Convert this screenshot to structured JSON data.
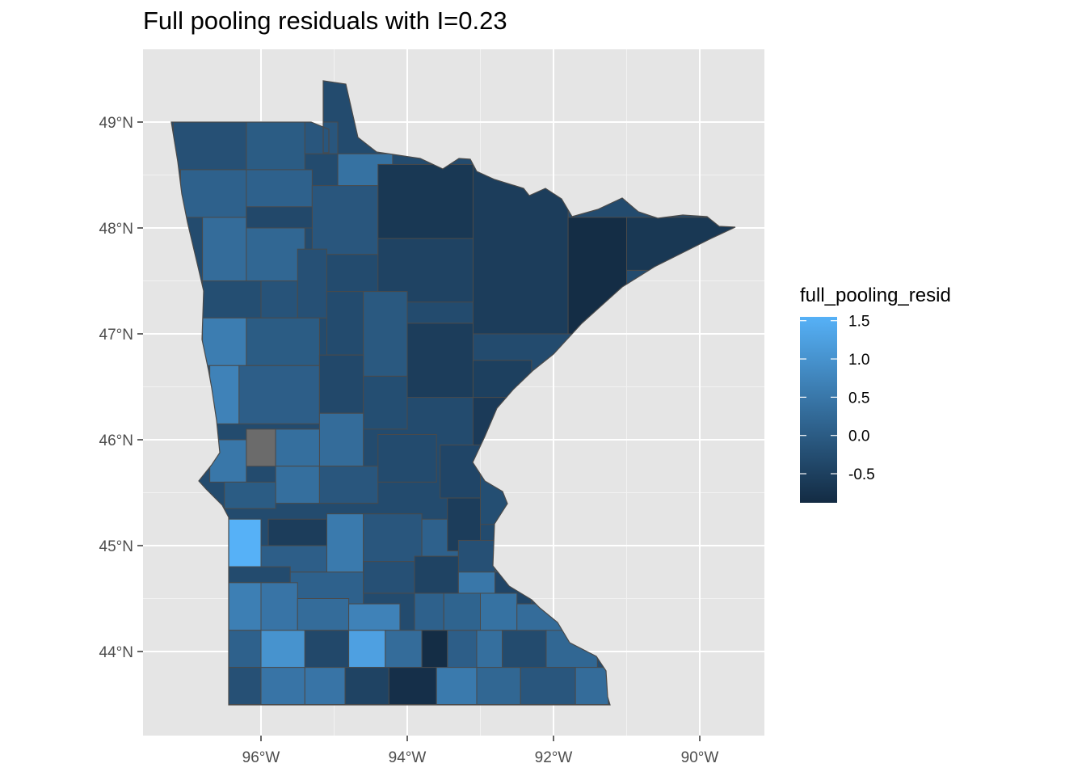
{
  "title": "Full pooling residuals with I=0.23",
  "chart_data": {
    "type": "choropleth",
    "title": "Full pooling residuals with I=0.23",
    "region": "Minnesota counties",
    "x_axis": {
      "ticks": [
        {
          "value": -96,
          "label": "96°W"
        },
        {
          "value": -94,
          "label": "94°W"
        },
        {
          "value": -92,
          "label": "92°W"
        },
        {
          "value": -90,
          "label": "90°W"
        }
      ],
      "range": [
        -97.6,
        -89.1
      ]
    },
    "y_axis": {
      "ticks": [
        {
          "value": 44,
          "label": "44°N"
        },
        {
          "value": 45,
          "label": "45°N"
        },
        {
          "value": 46,
          "label": "46°N"
        },
        {
          "value": 47,
          "label": "47°N"
        },
        {
          "value": 48,
          "label": "48°N"
        },
        {
          "value": 49,
          "label": "49°N"
        }
      ],
      "range": [
        43.2,
        49.7
      ]
    },
    "grid": true,
    "legend": {
      "title": "full_pooling_resid",
      "placement": "right",
      "breaks": [
        1.5,
        1.0,
        0.5,
        0.0,
        -0.5
      ],
      "labels": [
        "1.5",
        "1.0",
        "0.5",
        "0.0",
        "-0.5"
      ],
      "range": [
        -0.88,
        1.55
      ],
      "color_low": "#132b43",
      "color_high": "#56b1f7"
    },
    "na_color": "#6b6b6b",
    "counties": [
      {
        "lon": [
          -97.2,
          -96.2
        ],
        "lat": [
          48.55,
          49.0
        ],
        "value": -0.2
      },
      {
        "lon": [
          -96.2,
          -95.4
        ],
        "lat": [
          48.55,
          49.0
        ],
        "value": 0.0
      },
      {
        "lon": [
          -95.4,
          -94.95
        ],
        "lat": [
          48.7,
          49.0
        ],
        "value": -0.1
      },
      {
        "lon": [
          -94.95,
          -94.2
        ],
        "lat": [
          48.25,
          48.7
        ],
        "value": 0.4
      },
      {
        "lon": [
          -97.1,
          -96.2
        ],
        "lat": [
          48.1,
          48.55
        ],
        "value": 0.1
      },
      {
        "lon": [
          -96.2,
          -95.3
        ],
        "lat": [
          48.1,
          48.55
        ],
        "value": 0.1
      },
      {
        "lon": [
          -95.3,
          -94.4
        ],
        "lat": [
          47.75,
          48.4
        ],
        "value": -0.1
      },
      {
        "lon": [
          -94.4,
          -93.1
        ],
        "lat": [
          47.9,
          48.6
        ],
        "value": -0.65
      },
      {
        "lon": [
          -93.1,
          -91.8
        ],
        "lat": [
          47.0,
          48.6
        ],
        "value": -0.55
      },
      {
        "lon": [
          -91.8,
          -91.0
        ],
        "lat": [
          47.0,
          48.1
        ],
        "value": -0.85
      },
      {
        "lon": [
          -91.0,
          -89.5
        ],
        "lat": [
          47.6,
          48.1
        ],
        "value": -0.65
      },
      {
        "lon": [
          -96.8,
          -96.2
        ],
        "lat": [
          47.5,
          48.1
        ],
        "value": 0.3
      },
      {
        "lon": [
          -96.2,
          -95.3
        ],
        "lat": [
          48.0,
          48.2
        ],
        "value": -0.35
      },
      {
        "lon": [
          -96.2,
          -95.4
        ],
        "lat": [
          47.5,
          48.0
        ],
        "value": 0.2
      },
      {
        "lon": [
          -94.4,
          -93.1
        ],
        "lat": [
          47.3,
          47.9
        ],
        "value": -0.45
      },
      {
        "lon": [
          -96.8,
          -96.0
        ],
        "lat": [
          47.15,
          47.5
        ],
        "value": -0.25
      },
      {
        "lon": [
          -96.0,
          -95.5
        ],
        "lat": [
          47.15,
          47.5
        ],
        "value": -0.15
      },
      {
        "lon": [
          -95.5,
          -95.1
        ],
        "lat": [
          47.15,
          47.8
        ],
        "value": -0.2
      },
      {
        "lon": [
          -95.1,
          -94.6
        ],
        "lat": [
          46.8,
          47.4
        ],
        "value": -0.3
      },
      {
        "lon": [
          -94.6,
          -94.0
        ],
        "lat": [
          46.6,
          47.4
        ],
        "value": -0.05
      },
      {
        "lon": [
          -94.0,
          -93.1
        ],
        "lat": [
          46.4,
          47.1
        ],
        "value": -0.55
      },
      {
        "lon": [
          -96.8,
          -96.2
        ],
        "lat": [
          46.7,
          47.15
        ],
        "value": 0.6
      },
      {
        "lon": [
          -96.2,
          -95.2
        ],
        "lat": [
          46.7,
          47.15
        ],
        "value": 0.0
      },
      {
        "lon": [
          -93.1,
          -92.3
        ],
        "lat": [
          46.4,
          46.75
        ],
        "value": -0.5
      },
      {
        "lon": [
          -96.7,
          -96.3
        ],
        "lat": [
          46.15,
          46.7
        ],
        "value": 0.7
      },
      {
        "lon": [
          -96.3,
          -95.2
        ],
        "lat": [
          46.15,
          46.7
        ],
        "value": 0.05
      },
      {
        "lon": [
          -95.2,
          -94.6
        ],
        "lat": [
          46.25,
          46.8
        ],
        "value": -0.35
      },
      {
        "lon": [
          -94.6,
          -94.0
        ],
        "lat": [
          46.1,
          46.6
        ],
        "value": -0.25
      },
      {
        "lon": [
          -93.1,
          -92.3
        ],
        "lat": [
          45.85,
          46.4
        ],
        "value": -0.6
      },
      {
        "lon": [
          -95.2,
          -94.6
        ],
        "lat": [
          45.75,
          46.25
        ],
        "value": 0.3
      },
      {
        "lon": [
          -96.7,
          -96.2
        ],
        "lat": [
          45.6,
          46.0
        ],
        "value": 0.5
      },
      {
        "lon": [
          -96.2,
          -95.8
        ],
        "lat": [
          45.75,
          46.1
        ],
        "value": null
      },
      {
        "lon": [
          -95.8,
          -95.2
        ],
        "lat": [
          45.75,
          46.1
        ],
        "value": 0.35
      },
      {
        "lon": [
          -95.8,
          -95.2
        ],
        "lat": [
          45.4,
          45.75
        ],
        "value": 0.35
      },
      {
        "lon": [
          -95.2,
          -94.4
        ],
        "lat": [
          45.4,
          45.75
        ],
        "value": -0.1
      },
      {
        "lon": [
          -94.4,
          -93.6
        ],
        "lat": [
          45.6,
          46.05
        ],
        "value": -0.3
      },
      {
        "lon": [
          -93.55,
          -93.0
        ],
        "lat": [
          45.45,
          45.95
        ],
        "value": -0.4
      },
      {
        "lon": [
          -93.0,
          -92.6
        ],
        "lat": [
          45.2,
          45.85
        ],
        "value": -0.25
      },
      {
        "lon": [
          -96.5,
          -95.8
        ],
        "lat": [
          45.35,
          45.6
        ],
        "value": 0.0
      },
      {
        "lon": [
          -95.9,
          -95.1
        ],
        "lat": [
          45.0,
          45.25
        ],
        "value": -0.55
      },
      {
        "lon": [
          -95.1,
          -94.6
        ],
        "lat": [
          44.75,
          45.3
        ],
        "value": 0.55
      },
      {
        "lon": [
          -96.45,
          -96.0
        ],
        "lat": [
          44.8,
          45.25
        ],
        "value": 1.55
      },
      {
        "lon": [
          -96.0,
          -95.1
        ],
        "lat": [
          44.75,
          45.0
        ],
        "value": 0.05
      },
      {
        "lon": [
          -94.6,
          -93.8
        ],
        "lat": [
          44.75,
          45.3
        ],
        "value": -0.1
      },
      {
        "lon": [
          -93.8,
          -93.3
        ],
        "lat": [
          44.8,
          45.25
        ],
        "value": 0.1
      },
      {
        "lon": [
          -93.45,
          -93.0
        ],
        "lat": [
          44.95,
          45.45
        ],
        "value": -0.55
      },
      {
        "lon": [
          -93.3,
          -92.8
        ],
        "lat": [
          44.6,
          45.05
        ],
        "value": -0.2
      },
      {
        "lon": [
          -92.8,
          -92.6
        ],
        "lat": [
          44.75,
          45.2
        ],
        "value": 0.15
      },
      {
        "lon": [
          -96.45,
          -95.6
        ],
        "lat": [
          44.65,
          44.8
        ],
        "value": -0.3
      },
      {
        "lon": [
          -95.6,
          -94.6
        ],
        "lat": [
          44.45,
          44.75
        ],
        "value": 0.1
      },
      {
        "lon": [
          -94.6,
          -93.9
        ],
        "lat": [
          44.55,
          44.85
        ],
        "value": -0.2
      },
      {
        "lon": [
          -93.9,
          -93.3
        ],
        "lat": [
          44.55,
          44.9
        ],
        "value": -0.45
      },
      {
        "lon": [
          -93.3,
          -92.8
        ],
        "lat": [
          44.55,
          44.75
        ],
        "value": 0.5
      },
      {
        "lon": [
          -92.8,
          -92.3
        ],
        "lat": [
          44.4,
          44.75
        ],
        "value": -0.4
      },
      {
        "lon": [
          -96.45,
          -96.0
        ],
        "lat": [
          44.2,
          44.65
        ],
        "value": 0.65
      },
      {
        "lon": [
          -96.0,
          -95.5
        ],
        "lat": [
          44.2,
          44.65
        ],
        "value": 0.45
      },
      {
        "lon": [
          -95.5,
          -94.8
        ],
        "lat": [
          44.2,
          44.5
        ],
        "value": 0.3
      },
      {
        "lon": [
          -94.8,
          -94.1
        ],
        "lat": [
          44.2,
          44.45
        ],
        "value": 0.7
      },
      {
        "lon": [
          -93.9,
          -93.5
        ],
        "lat": [
          44.2,
          44.55
        ],
        "value": 0.1
      },
      {
        "lon": [
          -93.5,
          -93.0
        ],
        "lat": [
          44.2,
          44.55
        ],
        "value": 0.15
      },
      {
        "lon": [
          -93.0,
          -92.5
        ],
        "lat": [
          44.2,
          44.55
        ],
        "value": 0.4
      },
      {
        "lon": [
          -92.5,
          -91.8
        ],
        "lat": [
          44.15,
          44.45
        ],
        "value": 0.3
      },
      {
        "lon": [
          -96.45,
          -96.0
        ],
        "lat": [
          43.85,
          44.2
        ],
        "value": 0.1
      },
      {
        "lon": [
          -96.0,
          -95.4
        ],
        "lat": [
          43.85,
          44.2
        ],
        "value": 1.0
      },
      {
        "lon": [
          -95.4,
          -94.8
        ],
        "lat": [
          43.85,
          44.2
        ],
        "value": -0.35
      },
      {
        "lon": [
          -94.8,
          -94.3
        ],
        "lat": [
          43.85,
          44.2
        ],
        "value": 1.25
      },
      {
        "lon": [
          -94.3,
          -93.8
        ],
        "lat": [
          43.85,
          44.2
        ],
        "value": 0.3
      },
      {
        "lon": [
          -93.8,
          -93.45
        ],
        "lat": [
          43.85,
          44.2
        ],
        "value": -0.85
      },
      {
        "lon": [
          -93.45,
          -93.05
        ],
        "lat": [
          43.85,
          44.2
        ],
        "value": 0.05
      },
      {
        "lon": [
          -93.05,
          -92.7
        ],
        "lat": [
          43.85,
          44.2
        ],
        "value": 0.35
      },
      {
        "lon": [
          -92.7,
          -92.1
        ],
        "lat": [
          43.85,
          44.2
        ],
        "value": -0.3
      },
      {
        "lon": [
          -92.1,
          -91.4
        ],
        "lat": [
          43.85,
          44.2
        ],
        "value": 0.2
      },
      {
        "lon": [
          -96.45,
          -96.0
        ],
        "lat": [
          43.5,
          43.85
        ],
        "value": -0.2
      },
      {
        "lon": [
          -96.0,
          -95.4
        ],
        "lat": [
          43.5,
          43.85
        ],
        "value": 0.45
      },
      {
        "lon": [
          -95.4,
          -94.85
        ],
        "lat": [
          43.5,
          43.85
        ],
        "value": 0.45
      },
      {
        "lon": [
          -94.85,
          -94.25
        ],
        "lat": [
          43.5,
          43.85
        ],
        "value": -0.45
      },
      {
        "lon": [
          -94.25,
          -93.6
        ],
        "lat": [
          43.5,
          43.85
        ],
        "value": -0.8
      },
      {
        "lon": [
          -93.6,
          -93.05
        ],
        "lat": [
          43.5,
          43.85
        ],
        "value": 0.55
      },
      {
        "lon": [
          -93.05,
          -92.45
        ],
        "lat": [
          43.5,
          43.85
        ],
        "value": 0.2
      },
      {
        "lon": [
          -92.45,
          -91.7
        ],
        "lat": [
          43.5,
          43.85
        ],
        "value": -0.1
      },
      {
        "lon": [
          -91.7,
          -91.25
        ],
        "lat": [
          43.5,
          43.85
        ],
        "value": 0.3
      }
    ]
  }
}
